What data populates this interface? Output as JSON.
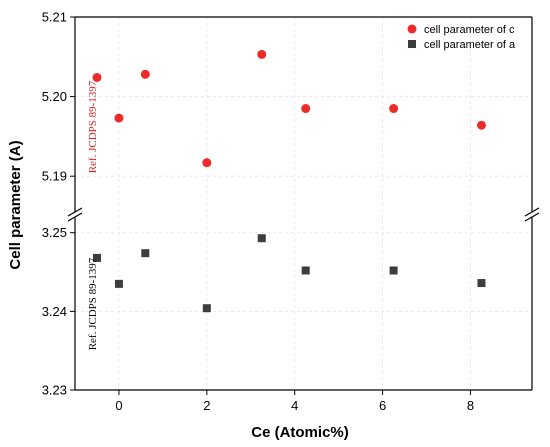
{
  "chart_data": {
    "type": "scatter",
    "xlabel": "Ce (Atomic%)",
    "ylabel": "Cell parameter (A)",
    "x_ticks": [
      "0",
      "2",
      "4",
      "6",
      "8"
    ],
    "xlim": [
      -1,
      9.4
    ],
    "grid": true,
    "broken_y_axis": true,
    "upper_panel": {
      "ylim": [
        5.1855,
        5.21
      ],
      "y_ticks": [
        "5.19",
        "5.20",
        "5.21"
      ]
    },
    "lower_panel": {
      "ylim": [
        3.23,
        3.252
      ],
      "y_ticks": [
        "3.23",
        "3.24",
        "3.25"
      ]
    },
    "series": [
      {
        "name": "cell parameter of c",
        "marker": "circle",
        "color": "#ee2b2b",
        "panel": "upper",
        "x": [
          -0.5,
          0,
          0.6,
          2,
          3.25,
          4.25,
          6.25,
          8.25
        ],
        "y": [
          5.2024,
          5.1973,
          5.2028,
          5.1917,
          5.2053,
          5.1985,
          5.1985,
          5.1964
        ]
      },
      {
        "name": "cell parameter of a",
        "marker": "square",
        "color": "#3d3d3d",
        "panel": "lower",
        "x": [
          -0.5,
          0,
          0.6,
          2,
          3.25,
          4.25,
          6.25,
          8.25
        ],
        "y": [
          3.2468,
          3.2435,
          3.2474,
          3.2404,
          3.2493,
          3.2452,
          3.2452,
          3.2436
        ]
      }
    ],
    "legend_position": "top-right",
    "annotations": [
      {
        "text": "Ref. JCDPS 89-1397",
        "panel": "upper",
        "color": "#e02020"
      },
      {
        "text": "Ref. JCDPS 89-1397",
        "panel": "lower",
        "color": "#000000"
      }
    ]
  }
}
